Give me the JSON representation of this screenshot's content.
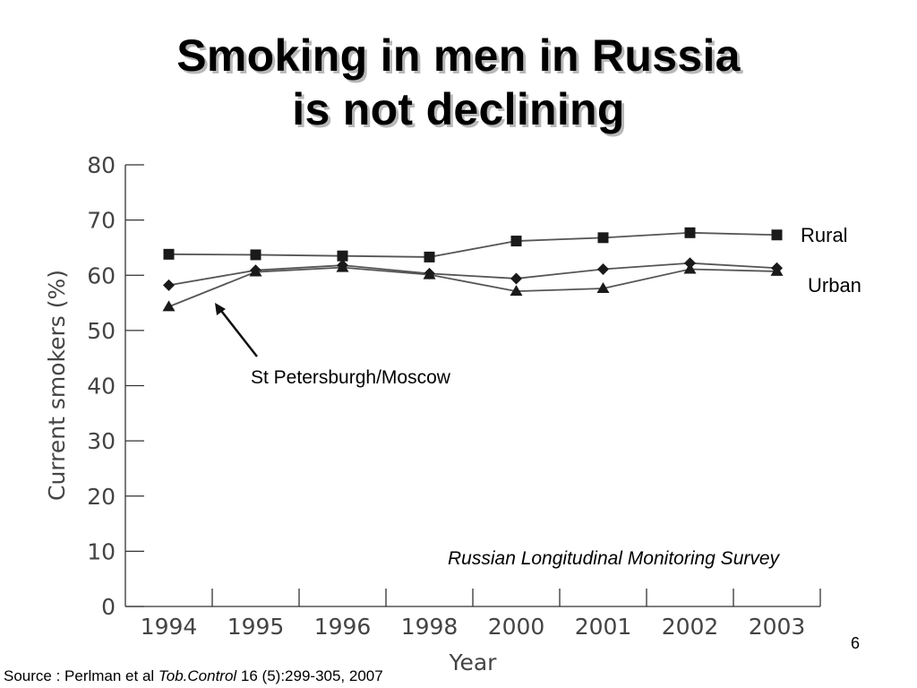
{
  "slide": {
    "title_line1": "Smoking in men in Russia",
    "title_line2": "is not declining",
    "page_number": "6",
    "source_prefix": "Source : Perlman et al ",
    "source_journal": "Tob.Control",
    "source_suffix": " 16 (5):299-305, 2007"
  },
  "chart_data": {
    "type": "line",
    "xlabel": "Year",
    "ylabel": "Current smokers (%)",
    "ylim": [
      0,
      80
    ],
    "yticks": [
      "0",
      "10",
      "20",
      "30",
      "40",
      "50",
      "60",
      "70",
      "80"
    ],
    "categories": [
      "1994",
      "1995",
      "1996",
      "1998",
      "2000",
      "2001",
      "2002",
      "2003"
    ],
    "grid": false,
    "series": [
      {
        "name": "Rural",
        "marker": "square",
        "values": [
          63.8,
          63.7,
          63.5,
          63.3,
          66.2,
          66.8,
          67.7,
          67.3
        ]
      },
      {
        "name": "Urban",
        "marker": "diamond",
        "values": [
          58.2,
          60.9,
          61.8,
          60.3,
          59.4,
          61.1,
          62.2,
          61.3
        ]
      },
      {
        "name": "St Petersburgh/Moscow",
        "marker": "triangle",
        "values": [
          54.3,
          60.6,
          61.4,
          60.1,
          57.1,
          57.6,
          61.1,
          60.7
        ]
      }
    ],
    "annotations": {
      "spm_label": "St Petersburgh/Moscow",
      "survey": "Russian Longitudinal Monitoring Survey"
    }
  },
  "colors": {
    "line": "#555555",
    "marker": "#1a1a1a",
    "axis": "#333333",
    "tick_text": "#444444"
  }
}
